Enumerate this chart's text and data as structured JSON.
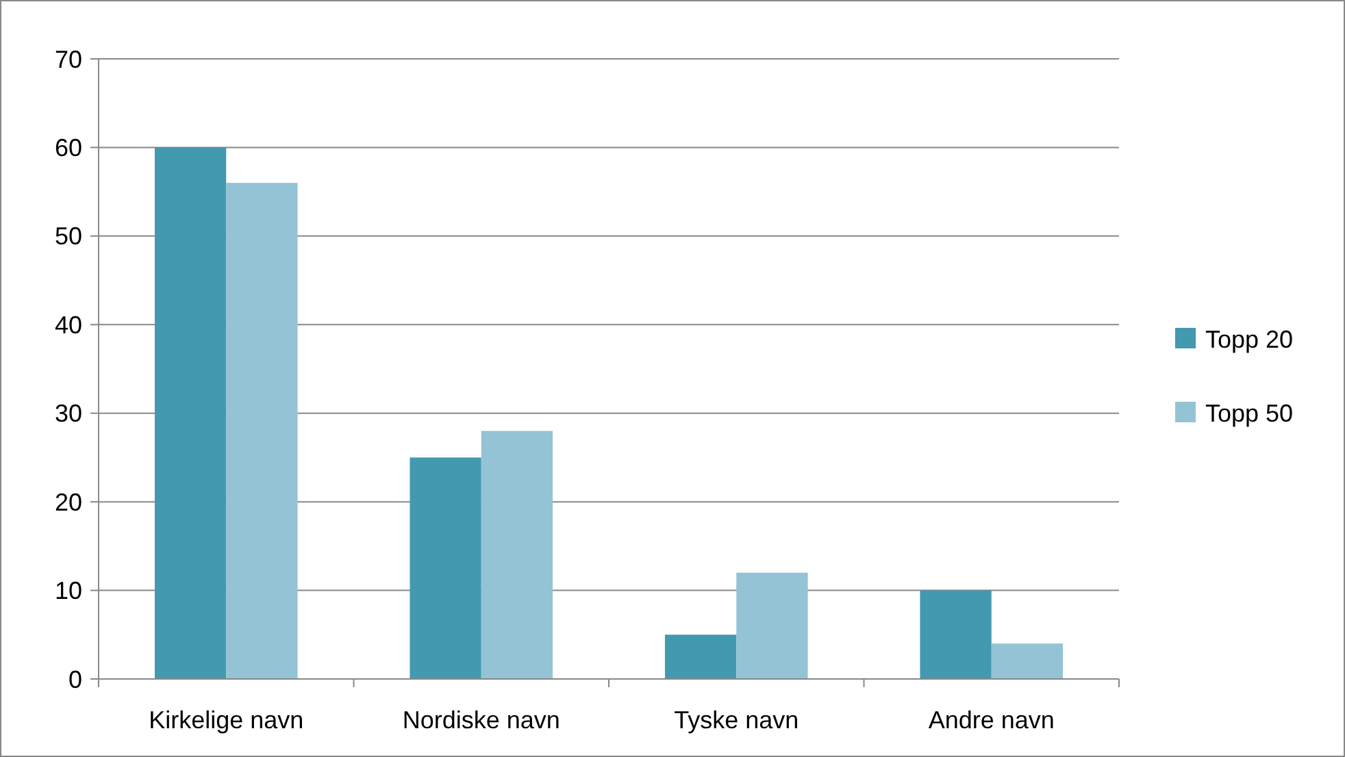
{
  "chart_data": {
    "type": "bar",
    "categories": [
      "Kirkelige navn",
      "Nordiske navn",
      "Tyske navn",
      "Andre navn"
    ],
    "series": [
      {
        "name": "Topp 20",
        "color": "#4399b0",
        "values": [
          60,
          25,
          5,
          10
        ]
      },
      {
        "name": "Topp 50",
        "color": "#93c3d5",
        "values": [
          56,
          28,
          12,
          4
        ]
      }
    ],
    "ylim": [
      0,
      70
    ],
    "yticks": [
      0,
      10,
      20,
      30,
      40,
      50,
      60,
      70
    ],
    "grid": "y",
    "legend": "right"
  }
}
